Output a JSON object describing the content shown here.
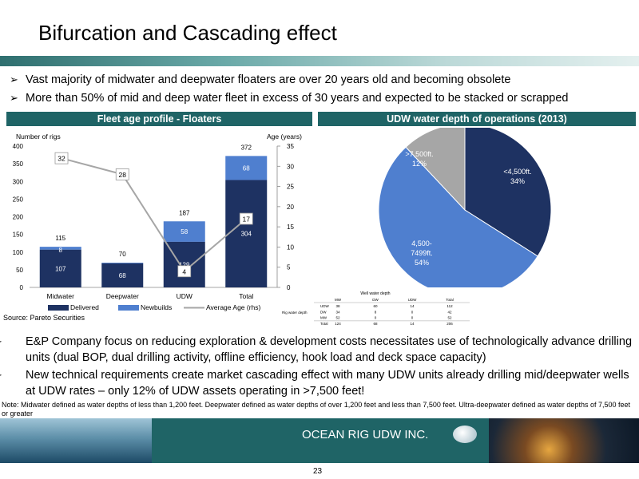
{
  "title": "Bifurcation and Cascading effect",
  "bullets_top": [
    "Vast majority of midwater and deepwater floaters are over 20 years old and becoming obsolete",
    "More than 50% of mid and deep water fleet in excess of 30 years and expected to be stacked or scrapped"
  ],
  "bullet_marker": "➢",
  "fleet_header": "Fleet age profile - Floaters",
  "udw_header": "UDW water depth of operations (2013)",
  "source": "Source: Pareto Securities",
  "chart_data": [
    {
      "type": "bar",
      "ylabel": "Number of rigs",
      "y2label": "Age (years)",
      "ylim": [
        0,
        400
      ],
      "yticks": [
        "0",
        "50",
        "100",
        "150",
        "200",
        "250",
        "300",
        "350",
        "400"
      ],
      "y2lim": [
        0,
        35
      ],
      "y2ticks": [
        "0",
        "5",
        "10",
        "15",
        "20",
        "25",
        "30",
        "35"
      ],
      "categories": [
        "Midwater",
        "Deepwater",
        "UDW",
        "Total"
      ],
      "series": [
        {
          "name": "Delivered",
          "values": [
            107,
            68,
            129,
            304
          ],
          "labels": [
            "107",
            "68",
            "129",
            "304"
          ],
          "color": "#1e3262"
        },
        {
          "name": "Newbuilds",
          "values": [
            8,
            2,
            58,
            68
          ],
          "labels": [
            "8",
            "",
            "58",
            "68"
          ],
          "color": "#4f7fcf"
        },
        {
          "name": "Average Age (rhs)",
          "values": [
            32,
            28,
            4,
            17
          ],
          "labels": [
            "32",
            "28",
            "4",
            "17"
          ],
          "color": "#a6a6a6"
        }
      ],
      "totals": [
        "115",
        "70",
        "187",
        "372"
      ],
      "legend_position": "bottom"
    },
    {
      "type": "pie",
      "slices": [
        {
          "label": "<4,500ft.",
          "pct_label": "34%",
          "value": 34,
          "color": "#1e3262"
        },
        {
          "label": "4,500-7499ft.",
          "pct_label": "54%",
          "value": 54,
          "color": "#4f7fcf"
        },
        {
          "label": ">7,500ft.",
          "pct_label": "12%",
          "value": 12,
          "color": "#a6a6a6"
        }
      ]
    }
  ],
  "water_table": {
    "title": "Well water depth",
    "row_title": "Rig water depth",
    "columns": [
      "MW",
      "DW",
      "UDW",
      "Total"
    ],
    "rows": [
      {
        "name": "UDW",
        "cells": [
          "38",
          "60",
          "14",
          "112"
        ]
      },
      {
        "name": "DW",
        "cells": [
          "34",
          "8",
          "0",
          "42"
        ]
      },
      {
        "name": "MW",
        "cells": [
          "52",
          "0",
          "0",
          "52"
        ]
      },
      {
        "name": "Total",
        "cells": [
          "124",
          "68",
          "14",
          "206"
        ]
      }
    ]
  },
  "bullets_bottom": [
    "E&P Company focus on reducing exploration & development costs necessitates use of technologically advance drilling units (dual BOP, dual drilling activity, offline efficiency, hook load and deck space capacity)",
    "New technical requirements create market cascading effect with many UDW units already drilling mid/deepwater wells at UDW rates – only 12% of UDW assets operating in >7,500 feet!"
  ],
  "note": "Note: Midwater defined as water depths of less than 1,200 feet. Deepwater defined as water depths of over 1,200 feet and less than 7,500 feet. Ultra-deepwater defined as water depths of 7,500 feet or greater",
  "company": "OCEAN RIG UDW INC.",
  "page_number": "23"
}
